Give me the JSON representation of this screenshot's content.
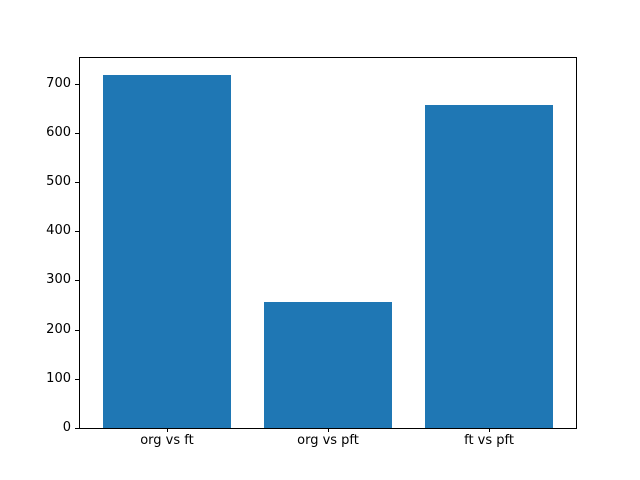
{
  "chart_data": {
    "type": "bar",
    "categories": [
      "org vs ft",
      "org vs pft",
      "ft vs pft"
    ],
    "values": [
      717,
      257,
      656
    ],
    "title": "",
    "xlabel": "",
    "ylabel": "",
    "ylim": [
      0,
      752
    ],
    "yticks": [
      0,
      100,
      200,
      300,
      400,
      500,
      600,
      700
    ],
    "bar_color": "#1f77b4",
    "bar_width_fraction": 0.8,
    "grid": false,
    "legend": null,
    "background_color": "#ffffff",
    "axis_color": "#000000"
  }
}
